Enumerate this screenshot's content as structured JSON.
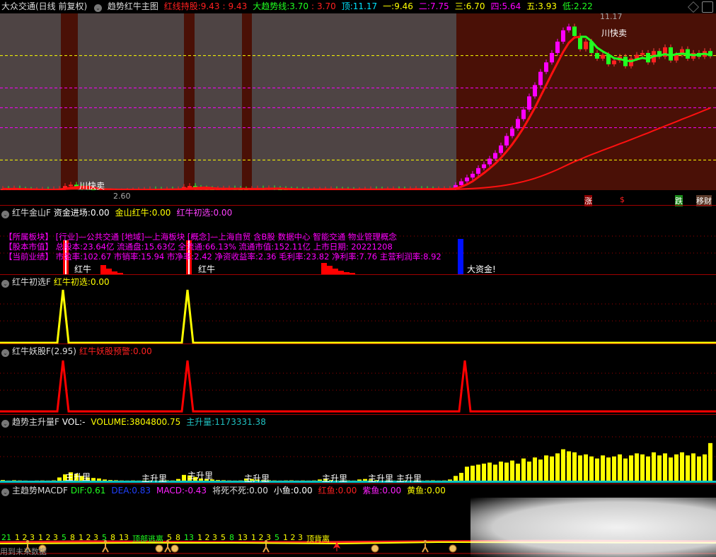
{
  "header": {
    "title": "大众交通(日线 前复权)",
    "indicator": "趋势红牛主图",
    "items": [
      {
        "label": "红线持股:",
        "value": "9.43",
        "value2": "9.43",
        "color": "#ff2020"
      },
      {
        "label": "大趋势线:",
        "value": "3.70",
        "value2": "3.70",
        "color": "#20ff20"
      },
      {
        "label": "顶:",
        "value": "11.17",
        "color": "#00e5ff"
      },
      {
        "label": "一:",
        "value": "9.46",
        "color": "#ffff00"
      },
      {
        "label": "二:",
        "value": "7.75",
        "color": "#ff00ff"
      },
      {
        "label": "三:",
        "value": "6.70",
        "color": "#ffff00"
      },
      {
        "label": "四:",
        "value": "5.64",
        "color": "#ff00ff"
      },
      {
        "label": "五:",
        "value": "3.93",
        "color": "#ffff00"
      },
      {
        "label": "低:",
        "value": "2.22",
        "color": "#20ff20"
      }
    ]
  },
  "main_chart": {
    "high_label": "11.17",
    "low_label": "2.60",
    "sell_label": "川快卖",
    "bottom_tags": [
      "涨",
      "$",
      "跌",
      "移财"
    ],
    "level_lines": [
      {
        "name": "一",
        "price": 9.46,
        "color": "#ffff00"
      },
      {
        "name": "二",
        "price": 7.75,
        "color": "#ff00ff"
      },
      {
        "name": "三",
        "price": 6.7,
        "color": "#ff00ff"
      },
      {
        "name": "四",
        "price": 5.64,
        "color": "#ff00ff"
      },
      {
        "name": "五",
        "price": 3.93,
        "color": "#ffff00"
      }
    ]
  },
  "chart_data": {
    "type": "candlestick",
    "closes": [
      2.4,
      2.38,
      2.42,
      2.36,
      2.35,
      2.33,
      2.34,
      2.36,
      2.35,
      2.38,
      2.4,
      2.55,
      2.62,
      2.5,
      2.45,
      2.4,
      2.33,
      2.3,
      2.28,
      2.26,
      2.25,
      2.27,
      2.3,
      2.32,
      2.34,
      2.35,
      2.38,
      2.36,
      2.35,
      2.37,
      2.36,
      2.38,
      2.5,
      2.55,
      2.45,
      2.42,
      2.4,
      2.38,
      2.4,
      2.41,
      2.42,
      2.4,
      2.38,
      2.37,
      2.4,
      2.42,
      2.41,
      2.43,
      2.4,
      2.39,
      2.37,
      2.36,
      2.35,
      2.34,
      2.33,
      2.35,
      2.36,
      2.37,
      2.38,
      2.36,
      2.35,
      2.34,
      2.33,
      2.34,
      2.36,
      2.38,
      2.37,
      2.36,
      2.37,
      2.38,
      2.37,
      2.36,
      2.38,
      2.4,
      2.39,
      2.38,
      2.37,
      2.38,
      2.39,
      2.4,
      2.6,
      2.8,
      3.0,
      3.2,
      3.5,
      3.7,
      4.0,
      4.3,
      4.7,
      5.2,
      5.6,
      6.1,
      6.6,
      7.3,
      7.9,
      8.6,
      9.1,
      9.6,
      10.2,
      10.8,
      11.0,
      10.5,
      9.8,
      10.2,
      9.6,
      9.3,
      9.5,
      9.0,
      9.2,
      9.4,
      8.9,
      9.3,
      9.5,
      9.6,
      9.1,
      9.7,
      9.4,
      9.9,
      9.2,
      9.5,
      9.8,
      9.3,
      9.6,
      9.4,
      9.7,
      9.43
    ],
    "price_range": [
      2.22,
      11.17
    ]
  },
  "panel_jinshan": {
    "name": "红牛金山F",
    "items": [
      {
        "label": "资金进场:",
        "value": "0.00",
        "color": "#ffffff"
      },
      {
        "label": "金山红牛:",
        "value": "0.00",
        "color": "#ffff00"
      },
      {
        "label": "红牛初选:",
        "value": "0.00",
        "color": "#ff40ff"
      }
    ],
    "info_lines": [
      "【所属板块】 [行业]—公共交通 [地域]—上海板块 [概念]—上海自贸 含B股 数据中心 智能交通 物业管理概念",
      "【股本市值】 总股本:23.64亿 流通盘:15.63亿 全流通:66.13% 流通市值:152.11亿 上市日期: 20221208",
      "【当前业绩】 市盈率:102.67 市销率:15.94 市净率:2.42 净资收益率:2.36 毛利率:23.82 净利率:7.76 主营利润率:8.92"
    ],
    "signal_label": "红牛",
    "big_money_label": "大资金!"
  },
  "panel_chuxuan": {
    "name": "红牛初选F",
    "items": [
      {
        "label": "红牛初选:",
        "value": "0.00",
        "color": "#ffff00"
      }
    ],
    "peaks_at_candle": [
      11,
      33
    ]
  },
  "panel_yaogu": {
    "name": "红牛妖股F(2.95)",
    "items": [
      {
        "label": "红牛妖股预警:",
        "value": "0.00",
        "color": "#ff2020"
      }
    ],
    "peaks_at_candle": [
      11,
      33,
      82
    ]
  },
  "panel_volume": {
    "name": "趋势主升量F",
    "items": [
      {
        "label": "VOL:",
        "value": "-",
        "color": "#ffffff"
      },
      {
        "label": "VOLUME:",
        "value": "3804800.75",
        "color": "#ffff00"
      },
      {
        "label": "主升量:",
        "value": "1173331.38",
        "color": "#20c0c0"
      }
    ],
    "bar_label": "主升里",
    "volumes": [
      200000,
      150000,
      180000,
      160000,
      150000,
      140000,
      150000,
      160000,
      150000,
      170000,
      450000,
      750000,
      950000,
      800000,
      600000,
      450000,
      400000,
      350000,
      250000,
      200000,
      180000,
      160000,
      150000,
      160000,
      150000,
      170000,
      160000,
      150000,
      160000,
      170000,
      160000,
      300000,
      700000,
      650000,
      500000,
      350000,
      300000,
      250000,
      200000,
      180000,
      160000,
      150000,
      160000,
      350000,
      300000,
      250000,
      200000,
      180000,
      160000,
      150000,
      160000,
      170000,
      150000,
      160000,
      150000,
      160000,
      250000,
      300000,
      200000,
      160000,
      150000,
      160000,
      150000,
      250000,
      300000,
      250000,
      200000,
      150000,
      160000,
      150000,
      160000,
      170000,
      150000,
      160000,
      150000,
      160000,
      170000,
      150000,
      160000,
      250000,
      600000,
      900000,
      1500000,
      1600000,
      1700000,
      1800000,
      1900000,
      1700000,
      2000000,
      1900000,
      2100000,
      1800000,
      2300000,
      2000000,
      2400000,
      2200000,
      2600000,
      2500000,
      2800000,
      3200000,
      3000000,
      2900000,
      2600000,
      2700000,
      2500000,
      2300000,
      2600000,
      2400000,
      2500000,
      2700000,
      2300000,
      2600000,
      2800000,
      2700000,
      2500000,
      2900000,
      2600000,
      2800000,
      2400000,
      2700000,
      2900000,
      2600000,
      2800000,
      2500000,
      2700000,
      3804800
    ]
  },
  "panel_macd": {
    "name": "主趋势MACDF",
    "items": [
      {
        "label": "DIF:",
        "value": "0.61",
        "color": "#20ff20"
      },
      {
        "label": "DEA:",
        "value": "0.83",
        "color": "#2040ff"
      },
      {
        "label": "MACD:",
        "value": "-0.43",
        "color": "#ff20ff"
      },
      {
        "label": "将死不死:",
        "value": "0.00",
        "color": "#dddddd"
      },
      {
        "label": "小鱼:",
        "value": "0.00",
        "color": "#ffffff"
      },
      {
        "label": "红鱼:",
        "value": "0.00",
        "color": "#ff2020"
      },
      {
        "label": "紫鱼:",
        "value": "0.00",
        "color": "#ff20ff"
      },
      {
        "label": "黄鱼:",
        "value": "0.00",
        "color": "#ffff00"
      }
    ],
    "sequence_labels": [
      "21",
      "1 2 3",
      "1 2 3",
      "5",
      "8",
      "1 2 3",
      "5",
      "8",
      "13",
      "顶部逃离",
      "5",
      "8",
      "13",
      "1 2 3",
      "5",
      "8",
      "13",
      "1 2 3",
      "5",
      "1 2 3",
      "顶背离"
    ],
    "future_data_label": "用到未来数据"
  },
  "colors": {
    "up": "#ff2020",
    "down": "#20ff20",
    "rise": "#ff00ff",
    "gray_bg": "#4e4444",
    "red_bg": "#4a1006"
  }
}
